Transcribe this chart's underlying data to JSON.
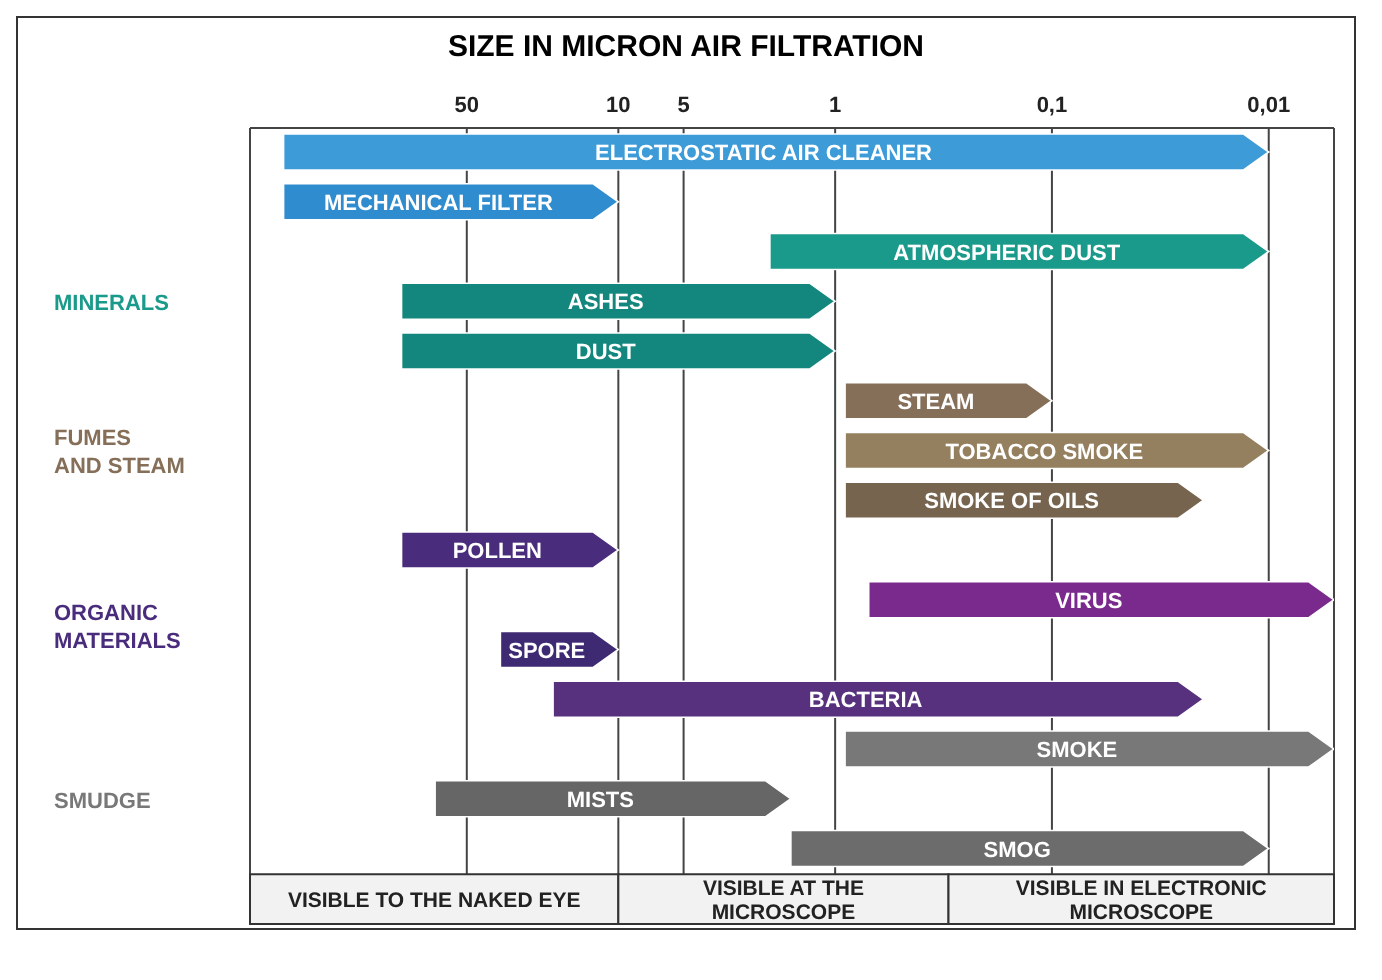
{
  "chart_data": {
    "type": "bar",
    "orientation": "horizontal",
    "title": "SIZE IN MICRON AIR FILTRATION",
    "categories": [
      "ELECTROSTATIC AIR CLEANER",
      "MECHANICAL FILTER",
      "ATMOSPHERIC DUST",
      "ASHES",
      "DUST",
      "STEAM",
      "TOBACCO SMOKE",
      "SMOKE OF OILS",
      "POLLEN",
      "VIRUS",
      "SPORE",
      "BACTERIA",
      "SMOKE",
      "MISTS",
      "SMOG"
    ],
    "series": [
      {
        "colors": [
          "#3d9bd8",
          "#2f8ccf",
          null,
          null,
          null,
          null,
          null,
          null,
          null,
          null,
          null,
          null,
          null,
          null,
          null
        ],
        "base": [
          0.01,
          10,
          null,
          null,
          null,
          null,
          null,
          null,
          null,
          null,
          null,
          null,
          null,
          null,
          null
        ],
        "values": [
          349.99,
          340,
          null,
          null,
          null,
          null,
          null,
          null,
          null,
          null,
          null,
          null,
          null,
          null,
          null
        ]
      },
      {
        "name": "MINERALS",
        "colors": [
          null,
          null,
          "#1a9a8a",
          "#13877d",
          "#13877d",
          null,
          null,
          null,
          null,
          null,
          null,
          null,
          null,
          null,
          null
        ],
        "base": [
          null,
          null,
          0.01,
          1,
          1,
          null,
          null,
          null,
          null,
          null,
          null,
          null,
          null,
          null,
          null
        ],
        "values": [
          null,
          null,
          1.99,
          99,
          99,
          null,
          null,
          null,
          null,
          null,
          null,
          null,
          null,
          null,
          null
        ]
      },
      {
        "name": "FUMES AND STEAM",
        "colors": [
          null,
          null,
          null,
          null,
          null,
          "#866f58",
          "#94805f",
          "#76644f",
          null,
          null,
          null,
          null,
          null,
          null,
          null
        ],
        "base": [
          null,
          null,
          null,
          null,
          null,
          0.1,
          0.01,
          0.02,
          null,
          null,
          null,
          null,
          null,
          null,
          null
        ],
        "values": [
          null,
          null,
          null,
          null,
          null,
          0.8,
          0.89,
          0.88,
          null,
          null,
          null,
          null,
          null,
          null,
          null
        ]
      },
      {
        "name": "ORGANIC MATERIALS",
        "colors": [
          null,
          null,
          null,
          null,
          null,
          null,
          null,
          null,
          "#4a2c7c",
          "#7a2a8c",
          "#3d2a72",
          "#57307e",
          null,
          null,
          null
        ],
        "base": [
          null,
          null,
          null,
          null,
          null,
          null,
          null,
          null,
          10,
          0.005,
          10,
          0.02,
          null,
          null,
          null
        ],
        "values": [
          null,
          null,
          null,
          null,
          null,
          null,
          null,
          null,
          90,
          0.695,
          25,
          19.98,
          null,
          null,
          null
        ]
      },
      {
        "name": "SMUDGE",
        "colors": [
          null,
          null,
          null,
          null,
          null,
          null,
          null,
          null,
          null,
          null,
          null,
          null,
          "#787878",
          "#666666",
          "#6c6c6c"
        ],
        "base": [
          null,
          null,
          null,
          null,
          null,
          null,
          null,
          null,
          null,
          null,
          null,
          null,
          0.005,
          1.6,
          0.01
        ],
        "values": [
          null,
          null,
          null,
          null,
          null,
          null,
          null,
          null,
          null,
          null,
          null,
          null,
          0.895,
          68.4,
          1.59
        ]
      }
    ],
    "log": "x",
    "xlim": [
      500,
      0.005
    ],
    "xticks": [
      50,
      10,
      5,
      1,
      {
        "value": 0.1,
        "label": "0,1"
      },
      {
        "value": 0.01,
        "label": "0,01"
      }
    ],
    "grid": "x",
    "legend": false,
    "bands": [
      {
        "axis": "x",
        "from": 500,
        "to": 10,
        "label": "VISIBLE TO THE NAKED EYE"
      },
      {
        "axis": "x",
        "from": 10,
        "to": 0.3,
        "label": "VISIBLE AT THE MICROSCOPE"
      },
      {
        "axis": "x",
        "from": 0.3,
        "to": 0.005,
        "label": "VISIBLE IN ELECTRONIC MICROSCOPE"
      }
    ]
  }
}
